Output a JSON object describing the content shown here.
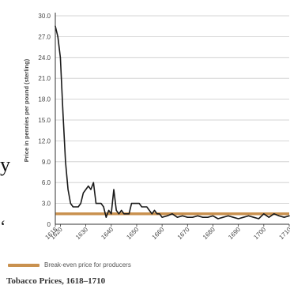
{
  "chart_data": {
    "type": "line",
    "title": "Tobacco Prices, 1618–1710",
    "xlabel": "",
    "ylabel": "Price in pennies per pound (sterling)",
    "xlim": [
      1618,
      1710
    ],
    "ylim": [
      0,
      30
    ],
    "y_ticks": [
      "30.0",
      "27.0",
      "24.0",
      "21.0",
      "18.0",
      "15.0",
      "12.0",
      "9.0",
      "6.0",
      "3.0",
      "0"
    ],
    "x_ticks": [
      "1618",
      "1620",
      "1630",
      "1640",
      "1650",
      "1660",
      "1670",
      "1680",
      "1690",
      "1700",
      "1710"
    ],
    "grid": "horizontal",
    "series": [
      {
        "name": "",
        "color": "#1a1a1a",
        "x": [
          1618,
          1619,
          1620,
          1621,
          1622,
          1623,
          1624,
          1625,
          1626,
          1627,
          1628,
          1629,
          1630,
          1631,
          1632,
          1633,
          1634,
          1635,
          1636,
          1637,
          1638,
          1639,
          1640,
          1641,
          1642,
          1643,
          1644,
          1645,
          1646,
          1647,
          1648,
          1649,
          1650,
          1651,
          1652,
          1653,
          1654,
          1655,
          1656,
          1657,
          1658,
          1659,
          1660,
          1662,
          1664,
          1666,
          1668,
          1670,
          1672,
          1674,
          1676,
          1678,
          1680,
          1682,
          1684,
          1686,
          1688,
          1690,
          1692,
          1694,
          1696,
          1698,
          1700,
          1702,
          1704,
          1706,
          1708,
          1710
        ],
        "y": [
          28.5,
          27.0,
          24.0,
          16.0,
          9.0,
          5.0,
          3.0,
          2.5,
          2.5,
          2.5,
          3.0,
          4.5,
          5.0,
          5.5,
          5.0,
          6.0,
          3.0,
          3.0,
          3.0,
          2.5,
          1.0,
          2.0,
          1.5,
          5.0,
          2.0,
          1.5,
          2.0,
          1.5,
          1.5,
          1.5,
          3.0,
          3.0,
          3.0,
          3.0,
          2.5,
          2.5,
          2.5,
          2.0,
          1.5,
          2.0,
          1.5,
          1.5,
          1.0,
          1.2,
          1.5,
          1.0,
          1.2,
          1.0,
          1.0,
          1.2,
          1.0,
          1.0,
          1.2,
          0.8,
          1.0,
          1.2,
          1.0,
          0.8,
          1.0,
          1.2,
          1.0,
          0.8,
          1.5,
          1.0,
          1.5,
          1.2,
          1.0,
          1.2
        ]
      }
    ],
    "reference_line": {
      "label": "Break-even price for producers",
      "y": 1.5,
      "color": "#c9914f"
    }
  },
  "stray_text": {
    "left_y": "y",
    "left_quote": "‘"
  }
}
